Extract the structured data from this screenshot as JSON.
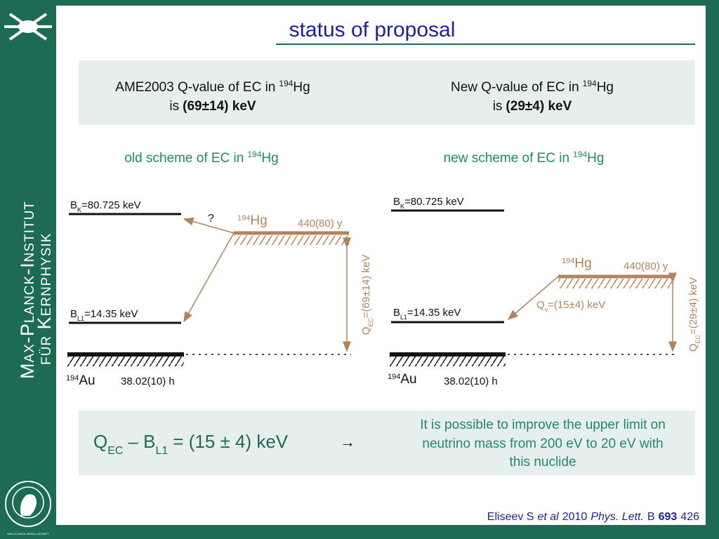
{
  "sidebar": {
    "institute_line1": "Max-Planck-Institut",
    "institute_line2": "für Kernphysik",
    "society": "MAX-PLANCK-GESELLSCHAFT"
  },
  "title": "status of proposal",
  "info": [
    {
      "text": "AME2003 Q-value of EC in",
      "mass": "194",
      "element": "Hg",
      "is": "is",
      "value": "(69±14) keV"
    },
    {
      "text": "New Q-value of EC in",
      "mass": "194",
      "element": "Hg",
      "is": "is",
      "value": "(29±4) keV"
    }
  ],
  "schemes": [
    {
      "heading": "old scheme of EC in",
      "mass": "194",
      "element": "Hg",
      "bk_symbol": "B",
      "bk_sub": "K",
      "bk_value": "=80.725 keV",
      "bl_symbol": "B",
      "bl_sub": "L1",
      "bl_value": "=14.35 keV",
      "unknown": "?",
      "parent_mass": "194",
      "parent_element": "Hg",
      "parent_halflife": "440(80) y",
      "daughter_mass": "194",
      "daughter_element": "Au",
      "daughter_halflife": "38.02(10) h",
      "q_symbol": "Q",
      "q_sub": "EC",
      "q_value": "=(69±14) keV"
    },
    {
      "heading": "new scheme of EC in",
      "mass": "194",
      "element": "Hg",
      "bk_symbol": "B",
      "bk_sub": "K",
      "bk_value": "=80.725 keV",
      "bl_symbol": "B",
      "bl_sub": "L1",
      "bl_value": "=14.35 keV",
      "qnu_symbol": "Q",
      "qnu_sub": "ν",
      "qnu_value": "=(15±4) keV",
      "parent_mass": "194",
      "parent_element": "Hg",
      "parent_halflife": "440(80) y",
      "daughter_mass": "194",
      "daughter_element": "Au",
      "daughter_halflife": "38.02(10) h",
      "q_symbol": "Q",
      "q_sub": "EC",
      "q_value": "=(29±4) keV"
    }
  ],
  "result": {
    "q": "Q",
    "q_sub": "EC",
    "minus": "– B",
    "b_sub": "L1",
    "value": "= (15 ± 4) keV",
    "arrow": "→",
    "conclusion": [
      "It is possible to improve the upper limit on",
      "neutrino mass from 200 eV to 20 eV with",
      "this nuclide"
    ]
  },
  "citation": {
    "author": "Eliseev S",
    "etal": "et al",
    "year": "2010",
    "journal": "Phys. Lett.",
    "series": "B",
    "volume": "693",
    "page": "426"
  }
}
